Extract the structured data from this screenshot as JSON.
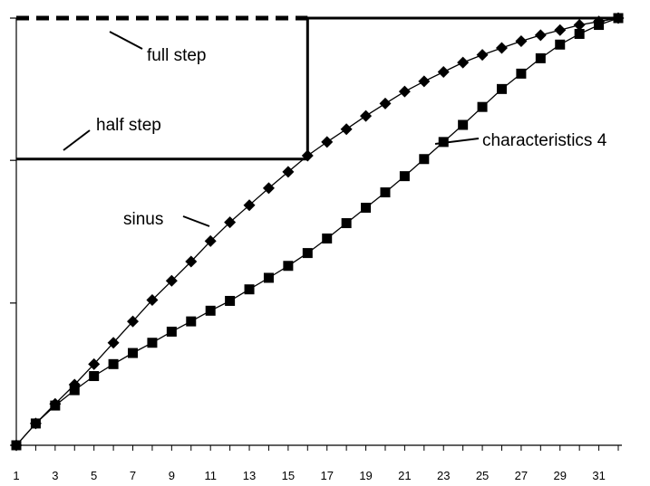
{
  "chart_data": {
    "type": "line",
    "title": "",
    "xlabel": "",
    "ylabel": "",
    "x": [
      1,
      2,
      3,
      4,
      5,
      6,
      7,
      8,
      9,
      10,
      11,
      12,
      13,
      14,
      15,
      16,
      17,
      18,
      19,
      20,
      21,
      22,
      23,
      24,
      25,
      26,
      27,
      28,
      29,
      30,
      31,
      32
    ],
    "xlim": [
      1,
      32
    ],
    "ylim": [
      0,
      1
    ],
    "x_tick_labels": [
      "1",
      "3",
      "5",
      "7",
      "9",
      "11",
      "13",
      "15",
      "17",
      "19",
      "21",
      "23",
      "25",
      "27",
      "29",
      "31"
    ],
    "y_ticks": [
      0,
      0.333,
      0.667,
      1
    ],
    "grid": false,
    "legend": "none",
    "series": [
      {
        "name": "",
        "style": "step-dashed",
        "marker": "none",
        "points": [
          [
            1,
            1
          ],
          [
            16,
            1
          ]
        ]
      },
      {
        "name": "",
        "style": "step-solid",
        "marker": "none",
        "points": [
          [
            1,
            0.67
          ],
          [
            16,
            0.67
          ],
          [
            16,
            1
          ],
          [
            32,
            1
          ]
        ]
      },
      {
        "name": "",
        "style": "line",
        "marker": "diamond",
        "values": [
          0,
          0.051,
          0.097,
          0.142,
          0.19,
          0.24,
          0.29,
          0.34,
          0.385,
          0.43,
          0.478,
          0.522,
          0.562,
          0.602,
          0.64,
          0.678,
          0.71,
          0.74,
          0.771,
          0.8,
          0.828,
          0.852,
          0.874,
          0.896,
          0.914,
          0.93,
          0.946,
          0.96,
          0.972,
          0.984,
          0.992,
          1.0
        ]
      },
      {
        "name": "",
        "style": "line",
        "marker": "square",
        "values": [
          0,
          0.051,
          0.093,
          0.129,
          0.162,
          0.19,
          0.216,
          0.24,
          0.266,
          0.29,
          0.315,
          0.338,
          0.365,
          0.392,
          0.42,
          0.45,
          0.484,
          0.52,
          0.556,
          0.592,
          0.63,
          0.67,
          0.71,
          0.75,
          0.792,
          0.834,
          0.87,
          0.906,
          0.938,
          0.963,
          0.984,
          1.0
        ]
      }
    ],
    "annotations": [
      {
        "text": "full step"
      },
      {
        "text": "half step"
      },
      {
        "text": "sinus"
      },
      {
        "text": "characteristics 4"
      }
    ]
  }
}
